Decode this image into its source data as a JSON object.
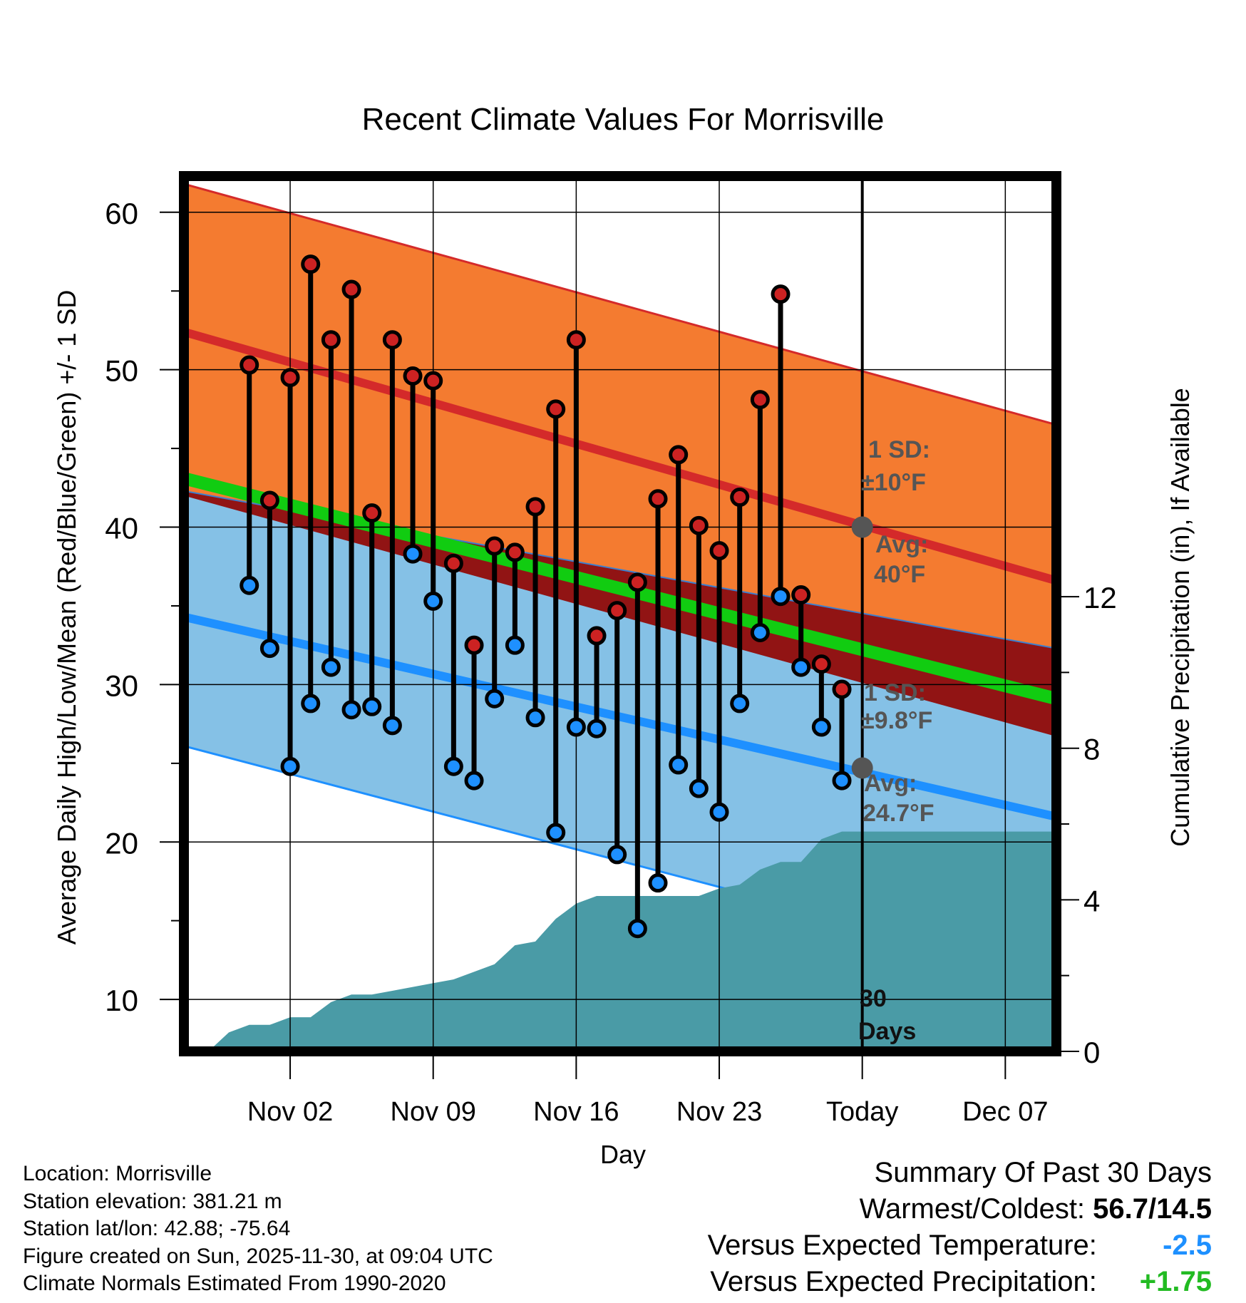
{
  "chart_data": {
    "type": "climate-range",
    "title": "Recent Climate Values For Morrisville",
    "xlabel": "Day",
    "ylabel_left": "Average Daily High/Low/Mean (Red/Blue/Green) +/- 1 SD",
    "ylabel_right": "Cumulative Precipitation (in), If Available",
    "y_left_range": [
      6.7,
      62.3
    ],
    "y_left_ticks": [
      10,
      20,
      30,
      40,
      50,
      60
    ],
    "y_right_range": [
      0,
      23.1
    ],
    "y_right_ticks": [
      0,
      4,
      8,
      12
    ],
    "x_range_days": [
      -33.2,
      9.5
    ],
    "x_ticks": [
      {
        "day": -28,
        "label": "Nov 02"
      },
      {
        "day": -21,
        "label": "Nov 09"
      },
      {
        "day": -14,
        "label": "Nov 16"
      },
      {
        "day": -7,
        "label": "Nov 23"
      },
      {
        "day": 0,
        "label": "Today"
      },
      {
        "day": 7,
        "label": "Dec 07"
      }
    ],
    "normals": {
      "high_mean": [
        52.4,
        36.6
      ],
      "high_sd_upper": [
        61.8,
        46.5
      ],
      "high_sd_lower": [
        42.0,
        26.7
      ],
      "low_mean": [
        34.3,
        21.6
      ],
      "low_sd_upper": [
        42.3,
        32.3
      ],
      "low_sd_lower": [
        26.1,
        11.5
      ],
      "mean_temp": [
        43.1,
        29.1
      ]
    },
    "series": [
      {
        "name": "High",
        "color": "#cc2222",
        "values": [
          50.3,
          41.7,
          49.5,
          56.7,
          51.9,
          55.1,
          40.9,
          51.9,
          49.6,
          49.3,
          37.7,
          32.5,
          38.8,
          38.4,
          41.3,
          47.5,
          51.9,
          33.1,
          34.7,
          36.5,
          41.8,
          44.6,
          40.1,
          38.5,
          41.9,
          48.1,
          54.8,
          35.7,
          31.3,
          29.7
        ]
      },
      {
        "name": "Low",
        "color": "#1e90ff",
        "values": [
          36.3,
          32.3,
          24.8,
          28.8,
          31.1,
          28.4,
          28.6,
          27.4,
          38.3,
          35.3,
          24.8,
          23.9,
          29.1,
          32.5,
          27.9,
          20.6,
          27.3,
          27.2,
          19.2,
          14.5,
          17.4,
          24.9,
          23.4,
          21.9,
          28.8,
          33.3,
          35.6,
          31.1,
          27.3,
          23.9
        ]
      },
      {
        "name": "Cumulative Precipitation",
        "color": "#4a9ba6",
        "days": [
          -32,
          -31,
          -30,
          -29,
          -28,
          -27,
          -26,
          -25,
          -24,
          -23,
          -22,
          -21,
          -20,
          -19,
          -18,
          -17,
          -16,
          -15,
          -14,
          -13,
          -12,
          -11,
          -10,
          -9,
          -8,
          -7,
          -6,
          -5,
          -4,
          -3,
          -2,
          -1,
          0,
          9.5
        ],
        "values": [
          0,
          0.5,
          0.7,
          0.7,
          0.9,
          0.9,
          1.3,
          1.5,
          1.5,
          1.6,
          1.7,
          1.8,
          1.9,
          2.1,
          2.3,
          2.8,
          2.9,
          3.5,
          3.9,
          4.1,
          4.1,
          4.1,
          4.1,
          4.1,
          4.1,
          4.3,
          4.4,
          4.8,
          5.0,
          5.0,
          5.6,
          5.8,
          5.8,
          5.8
        ]
      }
    ],
    "annotations": {
      "high_sd_label": "1 SD:",
      "high_sd_value": "±10°F",
      "high_avg_label": "Avg:",
      "high_avg_value": "40°F",
      "low_sd_label": "1 SD:",
      "low_sd_value": "±9.8°F",
      "low_avg_label": "Avg:",
      "low_avg_value": "24.7°F",
      "today_high_avg": 40,
      "today_low_avg": 24.7,
      "days_count": "30",
      "days_word": "Days"
    }
  },
  "footer": {
    "location": "Location: Morrisville",
    "elevation": "Station elevation: 381.21 m",
    "latlon": "Station lat/lon: 42.88; -75.64",
    "created": "Figure created on Sun, 2025-11-30, at 09:04 UTC",
    "normals": "Climate Normals Estimated From 1990-2020"
  },
  "summary": {
    "title": "Summary Of Past 30 Days",
    "warmest_label": "Warmest/Coldest:",
    "warmest_value": "56.7/14.5",
    "temp_label": "Versus Expected Temperature:",
    "temp_value": "-2.5",
    "precip_label": "Versus Expected Precipitation:",
    "precip_value": "+1.75"
  },
  "colors": {
    "high_band": "#f47b30",
    "high_line": "#d42a2a",
    "low_band": "#85c1e6",
    "low_line": "#1e90ff",
    "mean_line": "#11cc11",
    "overlap": "#911414",
    "precip": "#4a9ba6",
    "marker_high": "#cc2222",
    "marker_low": "#1e90ff",
    "today_dot": "#555555",
    "annotation": "#555555"
  }
}
